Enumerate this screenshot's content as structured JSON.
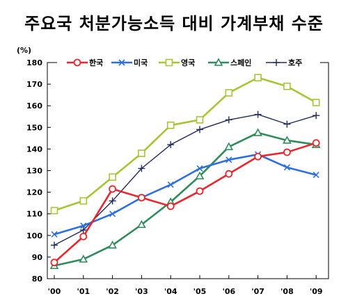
{
  "chart_data": {
    "type": "line",
    "title": "주요국 처분가능소득 대비 가계부채 수준",
    "unit": "(%)",
    "x": [
      "'00",
      "'01",
      "'02",
      "'03",
      "'04",
      "'05",
      "'06",
      "'07",
      "'08",
      "'09"
    ],
    "ylim": [
      80,
      180
    ],
    "yticks": [
      80,
      90,
      100,
      110,
      120,
      130,
      140,
      150,
      160,
      170,
      180
    ],
    "grid": false,
    "legend_position": "top",
    "series": [
      {
        "name": "한국",
        "color": "#e8262b",
        "marker": "circle",
        "values": [
          87.5,
          99.5,
          121.5,
          117.5,
          113.5,
          120.5,
          128.5,
          136.5,
          138.5,
          142.8
        ]
      },
      {
        "name": "미국",
        "color": "#2e6fe0",
        "marker": "x",
        "values": [
          100.5,
          104.5,
          110.0,
          117.5,
          123.5,
          131.0,
          135.0,
          137.5,
          131.5,
          128.0
        ]
      },
      {
        "name": "영국",
        "color": "#a5c634",
        "marker": "square",
        "values": [
          111.5,
          116.0,
          127.0,
          138.0,
          151.0,
          153.5,
          166.0,
          173.0,
          169.0,
          161.5
        ]
      },
      {
        "name": "스페인",
        "color": "#2e8b5a",
        "marker": "triangle",
        "values": [
          86.0,
          89.0,
          95.5,
          105.0,
          115.5,
          127.5,
          141.0,
          147.5,
          144.0,
          142.0
        ]
      },
      {
        "name": "호주",
        "color": "#1f2a5c",
        "marker": "plus",
        "values": [
          95.5,
          102.5,
          116.0,
          131.0,
          142.0,
          149.0,
          153.5,
          156.0,
          151.5,
          155.5
        ]
      }
    ]
  }
}
